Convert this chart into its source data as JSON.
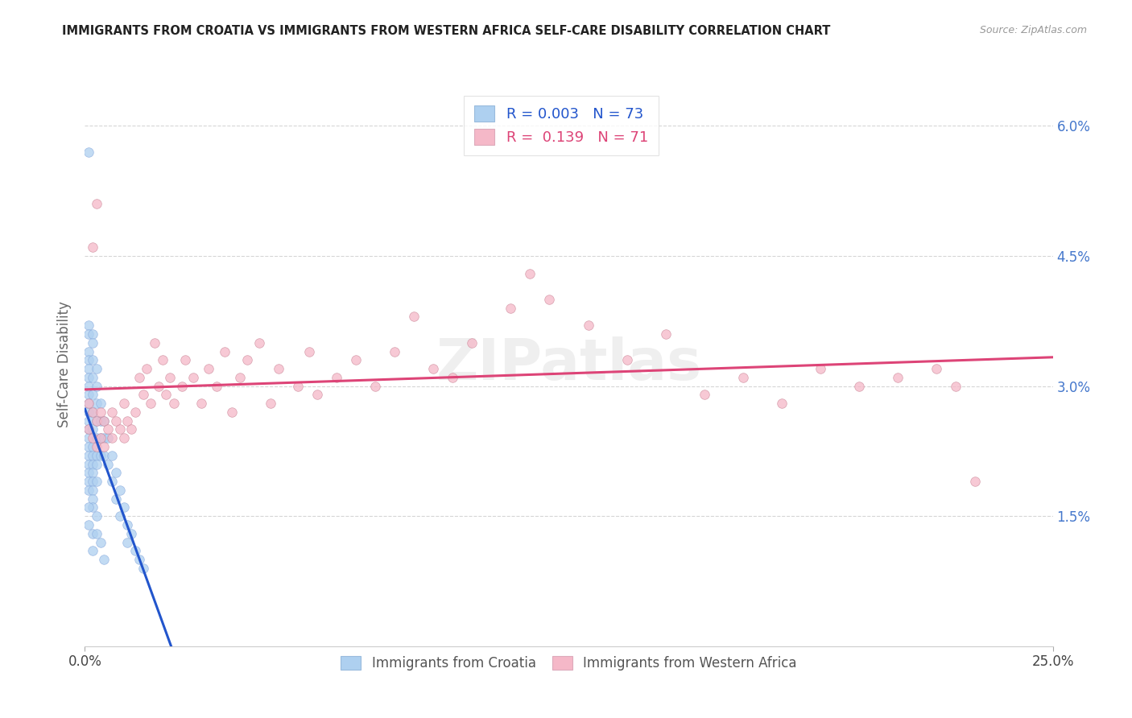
{
  "title": "IMMIGRANTS FROM CROATIA VS IMMIGRANTS FROM WESTERN AFRICA SELF-CARE DISABILITY CORRELATION CHART",
  "source": "Source: ZipAtlas.com",
  "ylabel": "Self-Care Disability",
  "yticks_labels": [
    "1.5%",
    "3.0%",
    "4.5%",
    "6.0%"
  ],
  "ytick_vals": [
    0.015,
    0.03,
    0.045,
    0.06
  ],
  "xlim": [
    0.0,
    0.25
  ],
  "ylim": [
    0.0,
    0.065
  ],
  "color_croatia": "#aed0f0",
  "color_west_africa": "#f5b8c8",
  "color_reg_croatia": "#2255cc",
  "color_reg_west_africa": "#dd4477",
  "color_grid": "#cccccc",
  "background": "#ffffff",
  "croatia_x": [
    0.001,
    0.001,
    0.001,
    0.001,
    0.001,
    0.001,
    0.001,
    0.001,
    0.001,
    0.001,
    0.001,
    0.001,
    0.001,
    0.001,
    0.001,
    0.001,
    0.001,
    0.001,
    0.001,
    0.001,
    0.002,
    0.002,
    0.002,
    0.002,
    0.002,
    0.002,
    0.002,
    0.002,
    0.002,
    0.002,
    0.002,
    0.002,
    0.002,
    0.002,
    0.002,
    0.003,
    0.003,
    0.003,
    0.003,
    0.003,
    0.003,
    0.003,
    0.003,
    0.004,
    0.004,
    0.004,
    0.004,
    0.005,
    0.005,
    0.005,
    0.006,
    0.006,
    0.007,
    0.007,
    0.008,
    0.008,
    0.009,
    0.009,
    0.01,
    0.011,
    0.011,
    0.012,
    0.013,
    0.014,
    0.015,
    0.001,
    0.001,
    0.002,
    0.002,
    0.003,
    0.003,
    0.004,
    0.005
  ],
  "croatia_y": [
    0.057,
    0.037,
    0.036,
    0.034,
    0.033,
    0.032,
    0.031,
    0.03,
    0.029,
    0.028,
    0.027,
    0.026,
    0.025,
    0.024,
    0.023,
    0.022,
    0.021,
    0.02,
    0.019,
    0.018,
    0.036,
    0.035,
    0.033,
    0.031,
    0.029,
    0.027,
    0.025,
    0.023,
    0.022,
    0.021,
    0.02,
    0.019,
    0.018,
    0.017,
    0.016,
    0.032,
    0.03,
    0.028,
    0.026,
    0.024,
    0.022,
    0.021,
    0.019,
    0.028,
    0.026,
    0.024,
    0.022,
    0.026,
    0.024,
    0.022,
    0.024,
    0.021,
    0.022,
    0.019,
    0.02,
    0.017,
    0.018,
    0.015,
    0.016,
    0.014,
    0.012,
    0.013,
    0.011,
    0.01,
    0.009,
    0.016,
    0.014,
    0.013,
    0.011,
    0.015,
    0.013,
    0.012,
    0.01
  ],
  "west_africa_x": [
    0.001,
    0.001,
    0.002,
    0.002,
    0.003,
    0.003,
    0.004,
    0.004,
    0.005,
    0.005,
    0.006,
    0.007,
    0.007,
    0.008,
    0.009,
    0.01,
    0.01,
    0.011,
    0.012,
    0.013,
    0.014,
    0.015,
    0.016,
    0.017,
    0.018,
    0.019,
    0.02,
    0.021,
    0.022,
    0.023,
    0.025,
    0.026,
    0.028,
    0.03,
    0.032,
    0.034,
    0.036,
    0.038,
    0.04,
    0.042,
    0.045,
    0.048,
    0.05,
    0.055,
    0.058,
    0.06,
    0.065,
    0.07,
    0.075,
    0.08,
    0.085,
    0.09,
    0.095,
    0.1,
    0.11,
    0.115,
    0.12,
    0.13,
    0.14,
    0.15,
    0.16,
    0.17,
    0.18,
    0.19,
    0.2,
    0.21,
    0.22,
    0.225,
    0.23,
    0.002,
    0.003
  ],
  "west_africa_y": [
    0.025,
    0.028,
    0.024,
    0.027,
    0.023,
    0.026,
    0.024,
    0.027,
    0.023,
    0.026,
    0.025,
    0.024,
    0.027,
    0.026,
    0.025,
    0.024,
    0.028,
    0.026,
    0.025,
    0.027,
    0.031,
    0.029,
    0.032,
    0.028,
    0.035,
    0.03,
    0.033,
    0.029,
    0.031,
    0.028,
    0.03,
    0.033,
    0.031,
    0.028,
    0.032,
    0.03,
    0.034,
    0.027,
    0.031,
    0.033,
    0.035,
    0.028,
    0.032,
    0.03,
    0.034,
    0.029,
    0.031,
    0.033,
    0.03,
    0.034,
    0.038,
    0.032,
    0.031,
    0.035,
    0.039,
    0.043,
    0.04,
    0.037,
    0.033,
    0.036,
    0.029,
    0.031,
    0.028,
    0.032,
    0.03,
    0.031,
    0.032,
    0.03,
    0.019,
    0.046,
    0.051
  ]
}
